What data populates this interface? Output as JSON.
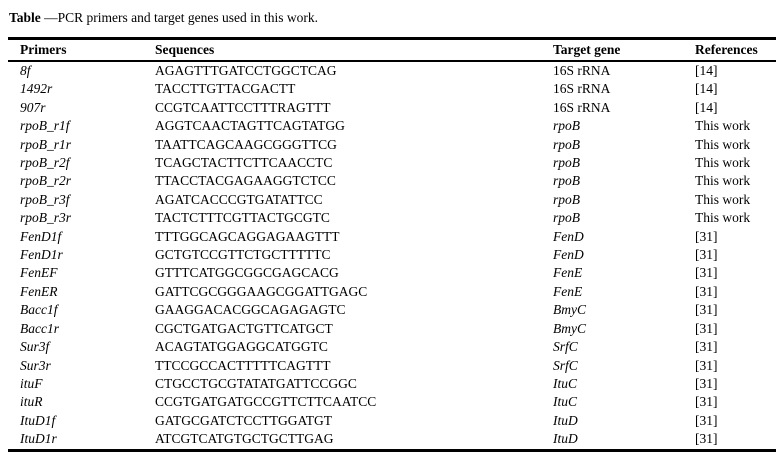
{
  "page": {
    "background": "#ffffff",
    "text_color": "#000000",
    "rule_color": "#000000"
  },
  "caption": {
    "bold_label": "Table",
    "text": " —PCR primers and target genes used in this work."
  },
  "table": {
    "columns": [
      "Primers",
      "Sequences",
      "Target gene",
      "References"
    ],
    "rows": [
      {
        "primer": "8f",
        "sequence": "AGAGTTTGATCCTGGCTCAG",
        "target_gene": "16S rRNA",
        "gene_italic": false,
        "reference": "[14]"
      },
      {
        "primer": "1492r",
        "sequence": "TACCTTGTTACGACTT",
        "target_gene": "16S rRNA",
        "gene_italic": false,
        "reference": "[14]"
      },
      {
        "primer": "907r",
        "sequence": "CCGTCAATTCCTTTRAGTTT",
        "target_gene": "16S rRNA",
        "gene_italic": false,
        "reference": "[14]"
      },
      {
        "primer": "rpoB_r1f",
        "sequence": "AGGTCAACTAGTTCAGTATGG",
        "target_gene": "rpoB",
        "gene_italic": true,
        "reference": "This work"
      },
      {
        "primer": "rpoB_r1r",
        "sequence": "TAATTCAGCAAGCGGGTTCG",
        "target_gene": "rpoB",
        "gene_italic": true,
        "reference": "This work"
      },
      {
        "primer": "rpoB_r2f",
        "sequence": "TCAGCTACTTCTTCAACCTC",
        "target_gene": "rpoB",
        "gene_italic": true,
        "reference": "This work"
      },
      {
        "primer": "rpoB_r2r",
        "sequence": "TTACCTACGAGAAGGTCTCC",
        "target_gene": "rpoB",
        "gene_italic": true,
        "reference": "This work"
      },
      {
        "primer": "rpoB_r3f",
        "sequence": "AGATCACCCGTGATATTCC",
        "target_gene": "rpoB",
        "gene_italic": true,
        "reference": "This work"
      },
      {
        "primer": "rpoB_r3r",
        "sequence": "TACTCTTTCGTTACTGCGTC",
        "target_gene": "rpoB",
        "gene_italic": true,
        "reference": "This work"
      },
      {
        "primer": "FenD1f",
        "sequence": "TTTGGCAGCAGGAGAAGTTT",
        "target_gene": "FenD",
        "gene_italic": true,
        "reference": "[31]"
      },
      {
        "primer": "FenD1r",
        "sequence": "GCTGTCCGTTCTGCTTTTTC",
        "target_gene": "FenD",
        "gene_italic": true,
        "reference": "[31]"
      },
      {
        "primer": "FenEF",
        "sequence": "GTTTCATGGCGGCGAGCACG",
        "target_gene": "FenE",
        "gene_italic": true,
        "reference": "[31]"
      },
      {
        "primer": "FenER",
        "sequence": "GATTCGCGGGAAGCGGATTGAGC",
        "target_gene": "FenE",
        "gene_italic": true,
        "reference": "[31]"
      },
      {
        "primer": "Bacc1f",
        "sequence": "GAAGGACACGGCAGAGAGTC",
        "target_gene": "BmyC",
        "gene_italic": true,
        "reference": "[31]"
      },
      {
        "primer": "Bacc1r",
        "sequence": "CGCTGATGACTGTTCATGCT",
        "target_gene": "BmyC",
        "gene_italic": true,
        "reference": "[31]"
      },
      {
        "primer": "Sur3f",
        "sequence": "ACAGTATGGAGGCATGGTC",
        "target_gene": "SrfC",
        "gene_italic": true,
        "reference": "[31]"
      },
      {
        "primer": "Sur3r",
        "sequence": "TTCCGCCACTTTTTCAGTTT",
        "target_gene": "SrfC",
        "gene_italic": true,
        "reference": "[31]"
      },
      {
        "primer": "ituF",
        "sequence": "CTGCCTGCGTATATGATTCCGGC",
        "target_gene": "ItuC",
        "gene_italic": true,
        "reference": "[31]"
      },
      {
        "primer": "ituR",
        "sequence": "CCGTGATGATGCCGTTCTTCAATCC",
        "target_gene": "ItuC",
        "gene_italic": true,
        "reference": "[31]"
      },
      {
        "primer": "ItuD1f",
        "sequence": "GATGCGATCTCCTTGGATGT",
        "target_gene": "ItuD",
        "gene_italic": true,
        "reference": "[31]"
      },
      {
        "primer": "ItuD1r",
        "sequence": "ATCGTCATGTGCTGCTTGAG",
        "target_gene": "ItuD",
        "gene_italic": true,
        "reference": "[31]"
      }
    ]
  }
}
